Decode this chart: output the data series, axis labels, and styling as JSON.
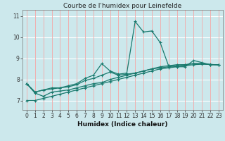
{
  "title": "Courbe de l'humidex pour Leinefelde",
  "xlabel": "Humidex (Indice chaleur)",
  "bg_color": "#cce8ec",
  "grid_color_h": "#ffffff",
  "grid_color_v": "#f0b0b0",
  "line_color": "#1a7a6e",
  "xlim": [
    -0.5,
    23.5
  ],
  "ylim": [
    6.55,
    11.3
  ],
  "yticks": [
    7,
    8,
    9,
    10,
    11
  ],
  "xticks": [
    0,
    1,
    2,
    3,
    4,
    5,
    6,
    7,
    8,
    9,
    10,
    11,
    12,
    13,
    14,
    15,
    16,
    17,
    18,
    19,
    20,
    21,
    22,
    23
  ],
  "lines": [
    [
      7.8,
      7.4,
      7.5,
      7.6,
      7.6,
      7.7,
      7.8,
      8.05,
      8.2,
      8.75,
      8.4,
      8.25,
      8.3,
      10.75,
      10.25,
      10.3,
      9.75,
      8.65,
      8.6,
      8.6,
      8.9,
      8.8,
      8.7,
      8.7
    ],
    [
      7.8,
      7.4,
      7.5,
      7.55,
      7.6,
      7.65,
      7.75,
      7.95,
      8.05,
      8.2,
      8.35,
      8.2,
      8.25,
      8.3,
      8.4,
      8.5,
      8.6,
      8.65,
      8.7,
      8.7,
      8.75,
      8.75,
      8.7,
      8.7
    ],
    [
      7.8,
      7.35,
      7.2,
      7.4,
      7.45,
      7.5,
      7.6,
      7.7,
      7.8,
      7.85,
      8.0,
      8.1,
      8.2,
      8.3,
      8.4,
      8.5,
      8.55,
      8.6,
      8.65,
      8.7,
      8.75,
      8.75,
      8.7,
      8.7
    ],
    [
      7.0,
      7.0,
      7.1,
      7.2,
      7.3,
      7.4,
      7.5,
      7.6,
      7.7,
      7.8,
      7.9,
      8.0,
      8.1,
      8.2,
      8.3,
      8.4,
      8.5,
      8.55,
      8.6,
      8.65,
      8.7,
      8.72,
      8.72,
      8.68
    ]
  ],
  "title_fontsize": 6.5,
  "xlabel_fontsize": 6.5,
  "tick_fontsize": 5.5
}
